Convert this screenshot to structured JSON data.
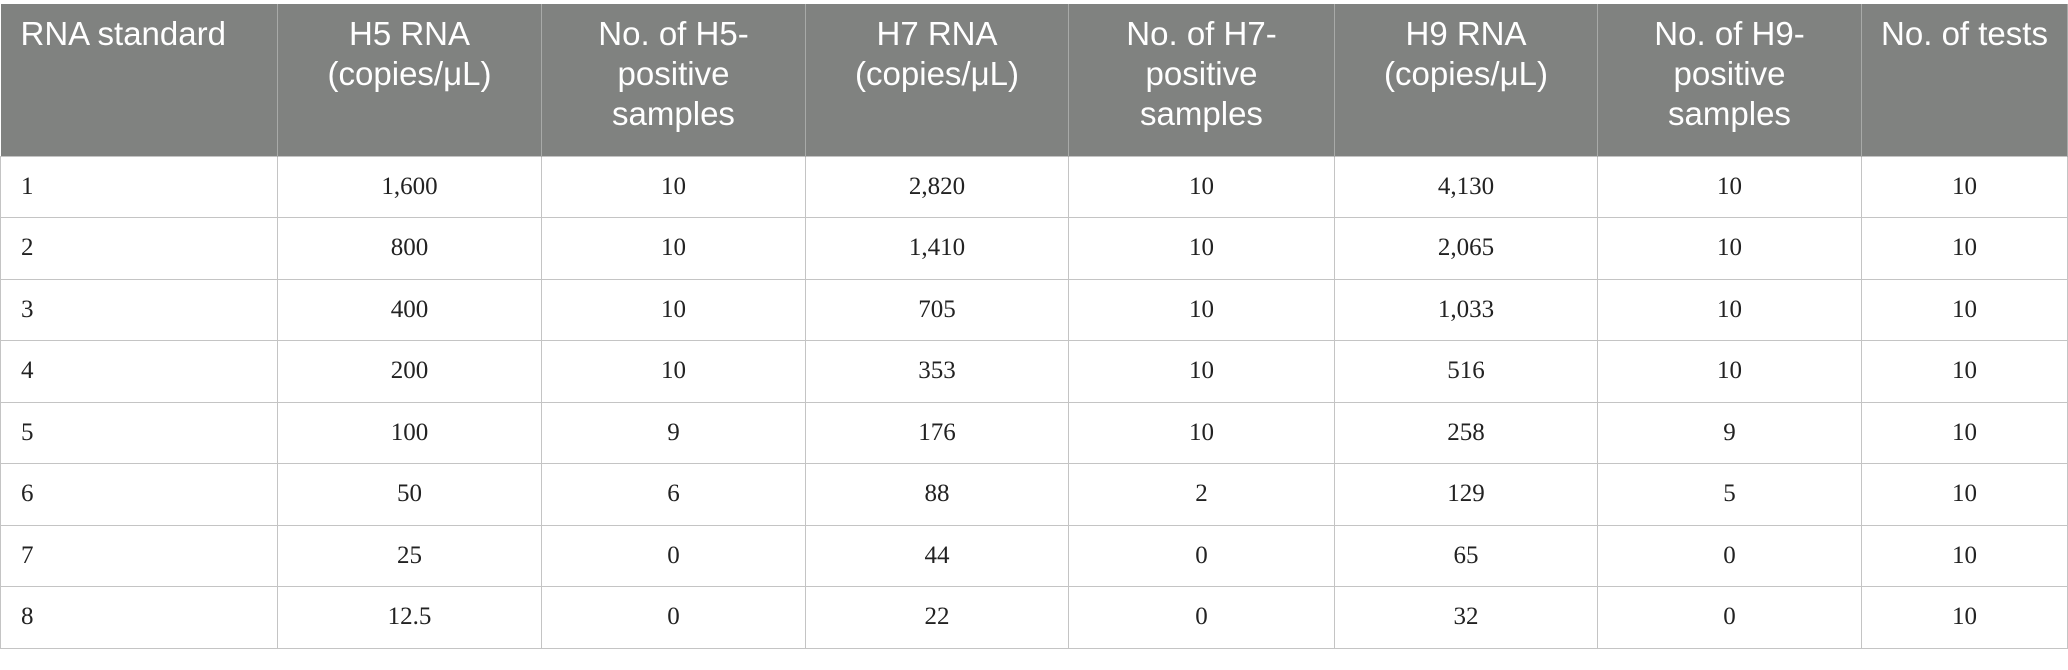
{
  "table": {
    "header": [
      "RNA standard",
      "H5 RNA (copies/μL)",
      "No. of H5-positive samples",
      "H7 RNA (copies/μL)",
      "No. of H7-positive samples",
      "H9 RNA (copies/μL)",
      "No. of H9-positive samples",
      "No. of tests"
    ],
    "rows": [
      [
        "1",
        "1,600",
        "10",
        "2,820",
        "10",
        "4,130",
        "10",
        "10"
      ],
      [
        "2",
        "800",
        "10",
        "1,410",
        "10",
        "2,065",
        "10",
        "10"
      ],
      [
        "3",
        "400",
        "10",
        "705",
        "10",
        "1,033",
        "10",
        "10"
      ],
      [
        "4",
        "200",
        "10",
        "353",
        "10",
        "516",
        "10",
        "10"
      ],
      [
        "5",
        "100",
        "9",
        "176",
        "10",
        "258",
        "9",
        "10"
      ],
      [
        "6",
        "50",
        "6",
        "88",
        "2",
        "129",
        "5",
        "10"
      ],
      [
        "7",
        "25",
        "0",
        "44",
        "0",
        "65",
        "0",
        "10"
      ],
      [
        "8",
        "12.5",
        "0",
        "22",
        "0",
        "32",
        "0",
        "10"
      ]
    ]
  }
}
